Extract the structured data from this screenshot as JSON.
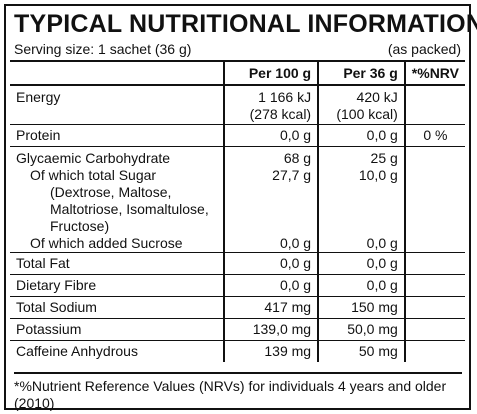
{
  "title": "TYPICAL NUTRITIONAL INFORMATION",
  "serving_size": "Serving size: 1 sachet (36 g)",
  "as_packed": "(as packed)",
  "headers": {
    "col2": "Per 100 g",
    "col3": "Per 36 g",
    "col4": "*%NRV"
  },
  "rows": {
    "energy": {
      "label": "Energy",
      "p100_line1": "1 166 kJ",
      "p100_line2": "(278 kcal)",
      "p36_line1": "420 kJ",
      "p36_line2": "(100 kcal)",
      "nrv": ""
    },
    "protein": {
      "label": "Protein",
      "p100": "0,0 g",
      "p36": "0,0 g",
      "nrv": "0 %"
    },
    "glyc": {
      "label": "Glycaemic Carbohydrate",
      "p100": "68 g",
      "p36": "25 g"
    },
    "sugar": {
      "label": "Of which total Sugar",
      "p100": "27,7 g",
      "p36": "10,0 g"
    },
    "sugar_detail": {
      "line1": "(Dextrose, Maltose,",
      "line2": "Maltotriose, Isomaltulose,",
      "line3": "Fructose)"
    },
    "added_sucrose": {
      "label": "Of which added Sucrose",
      "p100": "0,0 g",
      "p36": "0,0 g"
    },
    "total_fat": {
      "label": "Total Fat",
      "p100": "0,0 g",
      "p36": "0,0 g"
    },
    "fibre": {
      "label": "Dietary Fibre",
      "p100": "0,0 g",
      "p36": "0,0 g"
    },
    "sodium": {
      "label": "Total Sodium",
      "p100": "417 mg",
      "p36": "150 mg"
    },
    "potassium": {
      "label": "Potassium",
      "p100": "139,0 mg",
      "p36": "50,0 mg"
    },
    "caffeine": {
      "label": "Caffeine Anhydrous",
      "p100": "139 mg",
      "p36": "50 mg"
    }
  },
  "footnote": "*%Nutrient Reference Values (NRVs) for individuals 4 years and older (2010)"
}
